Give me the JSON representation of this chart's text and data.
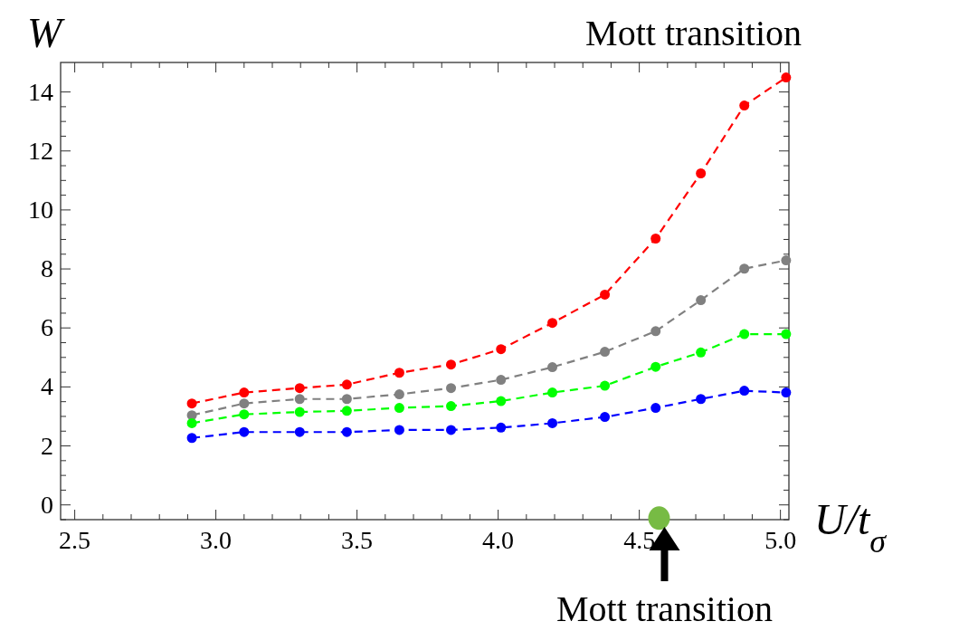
{
  "chart_data": {
    "type": "line",
    "ylabel": "W",
    "xlabel": "U/t$_{σ}$",
    "xlim": [
      2.45,
      5.03
    ],
    "xticks": [
      {
        "value": 2.5,
        "label": "2.5"
      },
      {
        "value": 3,
        "label": "3.0"
      },
      {
        "value": 3.5,
        "label": "3.5"
      },
      {
        "value": 4,
        "label": "4.0"
      },
      {
        "value": 4.5,
        "label": "4.5"
      },
      {
        "value": 5,
        "label": "5.0"
      }
    ],
    "ylim": [
      -0.5,
      15
    ],
    "yticks": [
      0,
      2,
      4,
      6,
      8,
      10,
      12,
      14
    ],
    "marker": "circle",
    "line_style": "dashed",
    "annotations": [
      "Mott transition",
      {
        "text": "Mott transition",
        "x": 4.57,
        "y": -0.5
      }
    ],
    "series": [
      {
        "color": "#ff0000",
        "x": [
          2.915,
          3.1,
          3.297,
          3.464,
          3.65,
          3.833,
          4.01,
          4.192,
          4.378,
          4.558,
          4.718,
          4.872,
          5.02
        ],
        "values": [
          3.44,
          3.81,
          3.96,
          4.08,
          4.48,
          4.76,
          5.28,
          6.17,
          7.13,
          9.03,
          11.24,
          13.54,
          14.49
        ]
      },
      {
        "color": "#808080",
        "x": [
          2.915,
          3.1,
          3.297,
          3.464,
          3.65,
          3.833,
          4.01,
          4.192,
          4.378,
          4.558,
          4.718,
          4.872,
          5.02
        ],
        "values": [
          3.04,
          3.44,
          3.59,
          3.59,
          3.75,
          3.96,
          4.24,
          4.67,
          5.19,
          5.89,
          6.94,
          8.01,
          8.29
        ]
      },
      {
        "color": "#00ff00",
        "x": [
          2.915,
          3.1,
          3.297,
          3.464,
          3.65,
          3.833,
          4.01,
          4.192,
          4.378,
          4.558,
          4.718,
          4.872,
          5.02
        ],
        "values": [
          2.77,
          3.07,
          3.15,
          3.19,
          3.29,
          3.35,
          3.52,
          3.81,
          4.04,
          4.68,
          5.17,
          5.79,
          5.79
        ]
      },
      {
        "color": "#0000ff",
        "x": [
          2.915,
          3.1,
          3.297,
          3.464,
          3.65,
          3.833,
          4.01,
          4.192,
          4.378,
          4.558,
          4.718,
          4.872,
          5.02
        ],
        "values": [
          2.27,
          2.47,
          2.47,
          2.47,
          2.54,
          2.54,
          2.62,
          2.77,
          2.98,
          3.29,
          3.59,
          3.87,
          3.81
        ]
      },
      {
        "type": "scatter",
        "color": "#77bb44",
        "x": [
          4.57
        ],
        "values": [
          -0.45
        ]
      }
    ]
  }
}
